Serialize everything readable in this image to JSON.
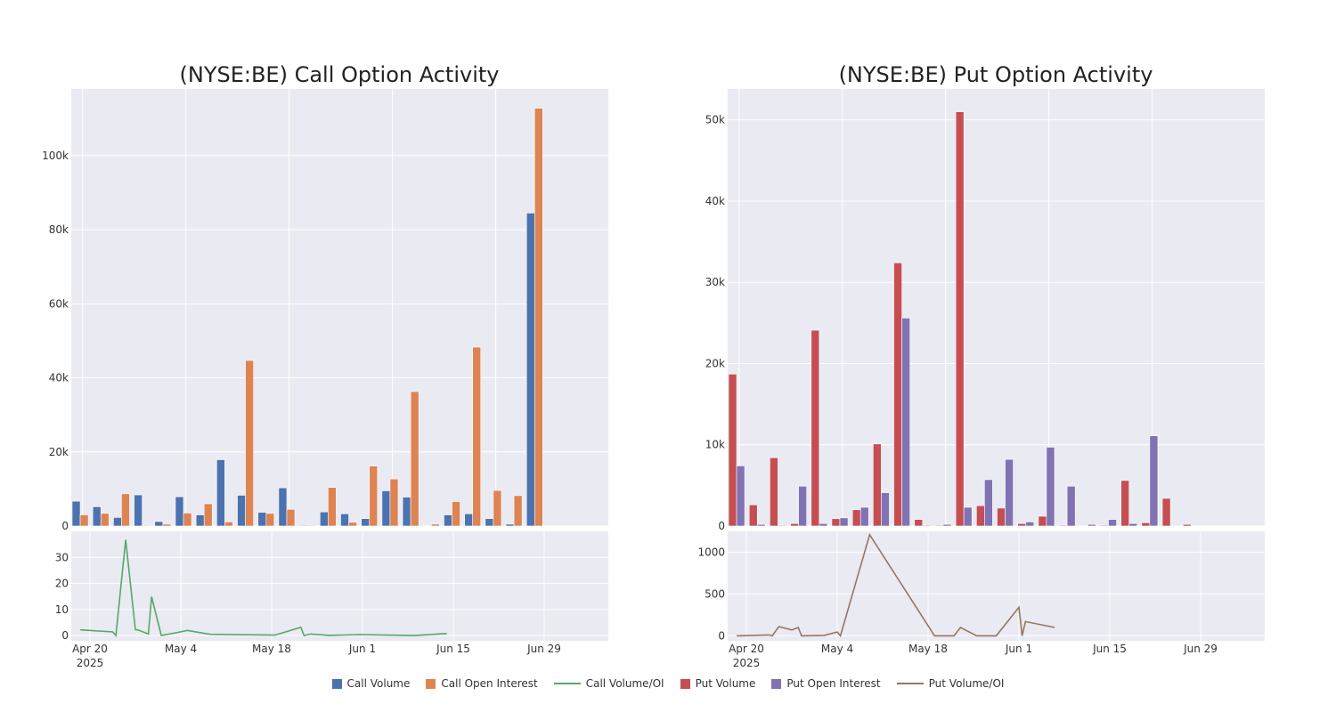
{
  "chart_data": [
    {
      "type": "bar",
      "title": "(NYSE:BE) Call Option Activity",
      "xlabel": "",
      "ylabel": "",
      "x": [
        "2025-04-17",
        "2025-04-21",
        "2025-04-24",
        "2025-04-28",
        "2025-05-01",
        "2025-05-05",
        "2025-05-07",
        "2025-05-09",
        "2025-05-12",
        "2025-05-15",
        "2025-05-19",
        "2025-05-22",
        "2025-05-27",
        "2025-05-29",
        "2025-06-02",
        "2025-06-05",
        "2025-06-09",
        "2025-06-11",
        "2025-06-13",
        "2025-06-16",
        "2025-06-19",
        "2025-06-24",
        "2025-06-26",
        "2025-06-30",
        "2025-07-03",
        "2025-07-07"
      ],
      "xticks": [
        {
          "date": "2025-04-18",
          "label": "Apr 20",
          "sub": "2025"
        },
        {
          "date": "2025-05-08",
          "label": "May 4",
          "sub": ""
        },
        {
          "date": "2025-05-28",
          "label": "May 18",
          "sub": ""
        },
        {
          "date": "2025-06-17",
          "label": "Jun 1",
          "sub": ""
        },
        {
          "date": "2025-07-07",
          "label": "Jun 15",
          "sub": ""
        },
        {
          "date": "2025-07-27",
          "label": "Jun 29",
          "sub": ""
        }
      ],
      "yticks": [
        0,
        20000,
        40000,
        60000,
        80000,
        100000
      ],
      "ytick_labels": [
        "0",
        "20k",
        "40k",
        "60k",
        "80k",
        "100k"
      ],
      "ylim": [
        0,
        118000
      ],
      "series": [
        {
          "name": "Call Volume",
          "color": "#4c72b0",
          "values": [
            6700,
            5200,
            2300,
            8400,
            1200,
            7900,
            3000,
            17900,
            8300,
            3700,
            10300,
            200,
            3800,
            3300,
            2000,
            9500,
            7800,
            100,
            3000,
            3300,
            2000,
            500,
            84500,
            null,
            null,
            null
          ]
        },
        {
          "name": "Call Open Interest",
          "color": "#dd8452",
          "values": [
            3000,
            3400,
            8700,
            200,
            500,
            3500,
            6000,
            1100,
            44700,
            3400,
            4500,
            200,
            10400,
            1000,
            16200,
            12700,
            36300,
            500,
            6600,
            48300,
            9600,
            8200,
            112800,
            null,
            null,
            null
          ]
        }
      ],
      "ratio": {
        "name": "Call Volume/OI",
        "color": "#55a868",
        "yticks": [
          0,
          10,
          20,
          30
        ],
        "ylim": [
          -2,
          40
        ],
        "points": [
          [
            "2025-04-17",
            2.2
          ],
          [
            "2025-04-27",
            1.4
          ],
          [
            "2025-04-28",
            0
          ],
          [
            "2025-05-01",
            36.8
          ],
          [
            "2025-05-04",
            2.3
          ],
          [
            "2025-05-05",
            2.1
          ],
          [
            "2025-05-08",
            0.6
          ],
          [
            "2025-05-09",
            14.9
          ],
          [
            "2025-05-12",
            0.1
          ],
          [
            "2025-05-17",
            1.2
          ],
          [
            "2025-05-20",
            2.0
          ],
          [
            "2025-05-27",
            0.5
          ],
          [
            "2025-06-16",
            0.2
          ],
          [
            "2025-06-24",
            3.2
          ],
          [
            "2025-06-25",
            0
          ],
          [
            "2025-06-27",
            0.6
          ],
          [
            "2025-07-03",
            0.1
          ],
          [
            "2025-07-12",
            0.4
          ],
          [
            "2025-07-29",
            0
          ],
          [
            "2025-08-08",
            0.8
          ]
        ]
      }
    },
    {
      "type": "bar",
      "title": "(NYSE:BE) Put Option Activity",
      "xlabel": "",
      "ylabel": "",
      "x": [
        "2025-04-17",
        "2025-04-21",
        "2025-04-24",
        "2025-04-28",
        "2025-05-01",
        "2025-05-05",
        "2025-05-07",
        "2025-05-09",
        "2025-05-12",
        "2025-05-15",
        "2025-05-19",
        "2025-05-22",
        "2025-05-27",
        "2025-05-29",
        "2025-06-02",
        "2025-06-05",
        "2025-06-09",
        "2025-06-11",
        "2025-06-13",
        "2025-06-16",
        "2025-06-19",
        "2025-06-24",
        "2025-06-26",
        "2025-06-30",
        "2025-07-03",
        "2025-07-07"
      ],
      "xticks": [
        {
          "date": "2025-04-18",
          "label": "Apr 20",
          "sub": "2025"
        },
        {
          "date": "2025-05-08",
          "label": "May 4",
          "sub": ""
        },
        {
          "date": "2025-05-28",
          "label": "May 18",
          "sub": ""
        },
        {
          "date": "2025-06-17",
          "label": "Jun 1",
          "sub": ""
        },
        {
          "date": "2025-07-07",
          "label": "Jun 15",
          "sub": ""
        },
        {
          "date": "2025-07-27",
          "label": "Jun 29",
          "sub": ""
        }
      ],
      "yticks": [
        0,
        10000,
        20000,
        30000,
        40000,
        50000
      ],
      "ytick_labels": [
        "0",
        "10k",
        "20k",
        "30k",
        "40k",
        "50k"
      ],
      "ylim": [
        0,
        53800
      ],
      "series": [
        {
          "name": "Put Volume",
          "color": "#c44e52",
          "values": [
            18700,
            2600,
            8400,
            300,
            24100,
            900,
            2000,
            10100,
            32400,
            800,
            100,
            51000,
            2500,
            2200,
            300,
            1200,
            100,
            0,
            100,
            5600,
            400,
            3400,
            200,
            null,
            null,
            null
          ]
        },
        {
          "name": "Put Open Interest",
          "color": "#8172b3",
          "values": [
            7400,
            200,
            100,
            4900,
            300,
            1000,
            2300,
            4100,
            25600,
            100,
            200,
            2300,
            5700,
            8200,
            500,
            9700,
            4900,
            200,
            800,
            300,
            11100,
            0,
            0,
            null,
            null,
            null
          ]
        }
      ],
      "ratio": {
        "name": "Put Volume/OI",
        "color": "#937860",
        "yticks": [
          0,
          500,
          1000
        ],
        "ylim": [
          -60,
          1250
        ],
        "points": [
          [
            "2025-04-17",
            0
          ],
          [
            "2025-04-27",
            10
          ],
          [
            "2025-04-28",
            0
          ],
          [
            "2025-04-30",
            110
          ],
          [
            "2025-05-04",
            70
          ],
          [
            "2025-05-06",
            100
          ],
          [
            "2025-05-07",
            0
          ],
          [
            "2025-05-14",
            5
          ],
          [
            "2025-05-18",
            45
          ],
          [
            "2025-05-19",
            0
          ],
          [
            "2025-05-28",
            1210
          ],
          [
            "2025-06-17",
            0
          ],
          [
            "2025-06-23",
            0
          ],
          [
            "2025-06-25",
            100
          ],
          [
            "2025-06-30",
            0
          ],
          [
            "2025-07-06",
            0
          ],
          [
            "2025-07-13",
            340
          ],
          [
            "2025-07-14",
            0
          ],
          [
            "2025-07-15",
            170
          ],
          [
            "2025-07-24",
            100
          ]
        ]
      }
    }
  ],
  "legend": [
    {
      "label": "Call Volume",
      "kind": "box",
      "color": "#4c72b0"
    },
    {
      "label": "Call Open Interest",
      "kind": "box",
      "color": "#dd8452"
    },
    {
      "label": "Call Volume/OI",
      "kind": "line",
      "color": "#55a868"
    },
    {
      "label": "Put Volume",
      "kind": "box",
      "color": "#c44e52"
    },
    {
      "label": "Put Open Interest",
      "kind": "box",
      "color": "#8172b3"
    },
    {
      "label": "Put Volume/OI",
      "kind": "line",
      "color": "#937860"
    }
  ]
}
